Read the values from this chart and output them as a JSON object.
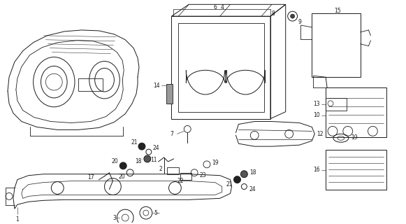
{
  "background_color": "#ffffff",
  "line_color": "#1a1a1a",
  "fig_width": 5.81,
  "fig_height": 3.2,
  "dpi": 100,
  "parts": {
    "label_fontsize": 5.5,
    "label_color": "#000000"
  }
}
